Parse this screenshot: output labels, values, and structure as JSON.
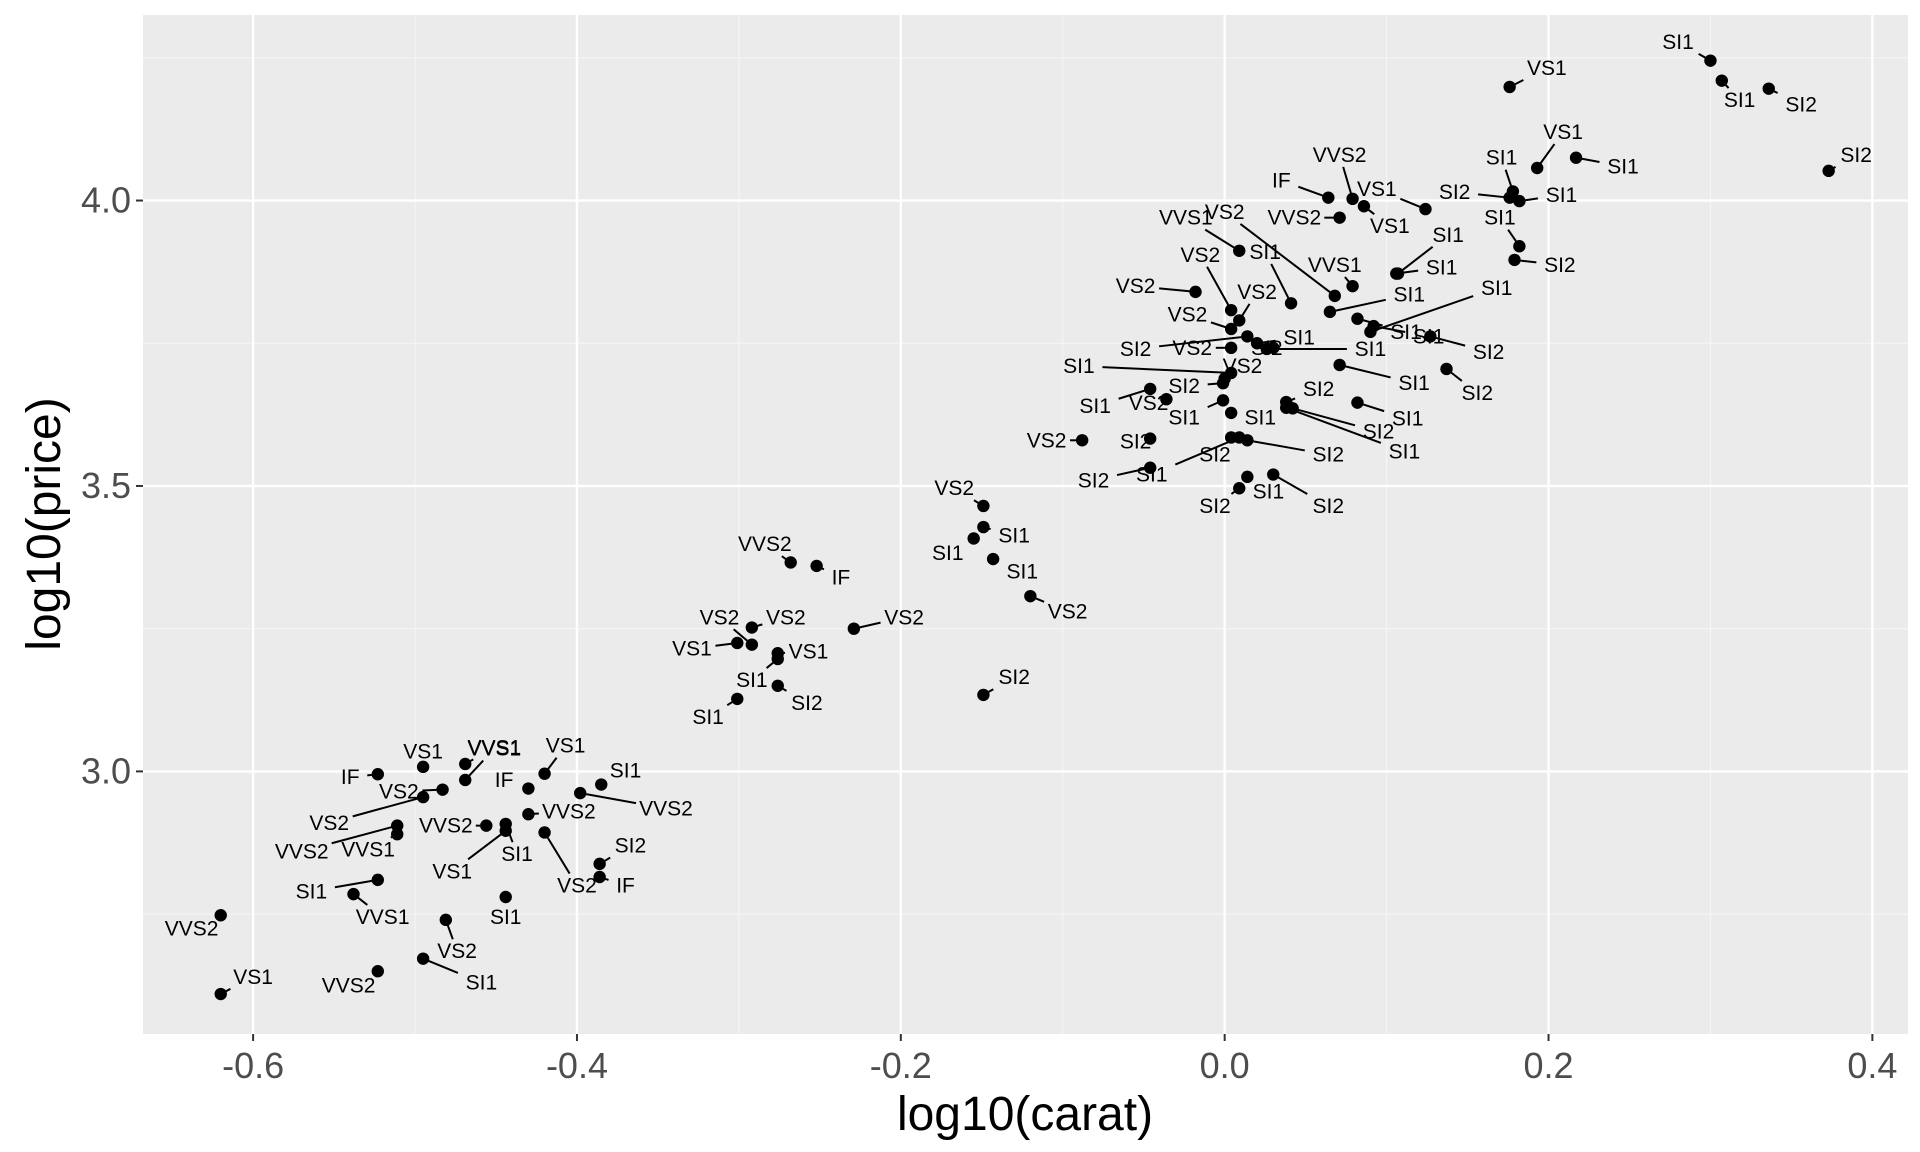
{
  "chart_data": {
    "type": "scatter",
    "xlabel": "log10(carat)",
    "ylabel": "log10(price)",
    "xlim": [
      -0.668,
      0.422
    ],
    "ylim": [
      2.54,
      4.325
    ],
    "x_ticks": [
      -0.6,
      -0.4,
      -0.2,
      0.0,
      0.2,
      0.4
    ],
    "y_ticks": [
      3.0,
      3.5,
      4.0
    ],
    "x_tick_labels": [
      "-0.6",
      "-0.4",
      "-0.2",
      "0.0",
      "0.2",
      "0.4"
    ],
    "y_tick_labels": [
      "3.0",
      "3.5",
      "4.0"
    ],
    "grid": true,
    "colors": {
      "panel_background": "#ebebeb",
      "grid_major": "#ffffff",
      "grid_minor": "#f5f5f5",
      "point": "#000000",
      "tick_text": "#4d4d4d"
    },
    "points": [
      {
        "x": 0.176,
        "y": 4.199,
        "label": "VS1",
        "lx": 0.199,
        "ly": 4.232
      },
      {
        "x": 0.3,
        "y": 4.245,
        "label": "SI1",
        "lx": 0.28,
        "ly": 4.278
      },
      {
        "x": 0.307,
        "y": 4.21,
        "label": "SI1",
        "lx": 0.318,
        "ly": 4.176
      },
      {
        "x": 0.336,
        "y": 4.196,
        "label": "SI2",
        "lx": 0.356,
        "ly": 4.168
      },
      {
        "x": 0.373,
        "y": 4.052,
        "label": "SI2",
        "lx": 0.39,
        "ly": 4.08
      },
      {
        "x": 0.193,
        "y": 4.057,
        "label": "VS1",
        "lx": 0.209,
        "ly": 4.12
      },
      {
        "x": 0.217,
        "y": 4.075,
        "label": "SI1",
        "lx": 0.246,
        "ly": 4.06
      },
      {
        "x": 0.178,
        "y": 4.016,
        "label": "SI1",
        "lx": 0.171,
        "ly": 4.075
      },
      {
        "x": 0.176,
        "y": 4.005,
        "label": "SI2",
        "lx": 0.142,
        "ly": 4.015
      },
      {
        "x": 0.182,
        "y": 3.999,
        "label": "SI1",
        "lx": 0.208,
        "ly": 4.01
      },
      {
        "x": 0.182,
        "y": 3.92,
        "label": "SI1",
        "lx": 0.17,
        "ly": 3.97
      },
      {
        "x": 0.179,
        "y": 3.896,
        "label": "SI2",
        "lx": 0.207,
        "ly": 3.887
      },
      {
        "x": 0.124,
        "y": 3.985,
        "label": "VS1",
        "lx": 0.094,
        "ly": 4.02
      },
      {
        "x": 0.086,
        "y": 3.99,
        "label": "VS1",
        "lx": 0.102,
        "ly": 3.955
      },
      {
        "x": 0.079,
        "y": 4.003,
        "label": "VVS2",
        "lx": 0.071,
        "ly": 4.08
      },
      {
        "x": 0.064,
        "y": 4.005,
        "label": "IF",
        "lx": 0.035,
        "ly": 4.035
      },
      {
        "x": 0.071,
        "y": 3.97,
        "label": "VVS2",
        "lx": 0.043,
        "ly": 3.97
      },
      {
        "x": 0.107,
        "y": 3.872,
        "label": "SI1",
        "lx": 0.138,
        "ly": 3.94
      },
      {
        "x": 0.106,
        "y": 3.872,
        "label": "SI1",
        "lx": 0.134,
        "ly": 3.883
      },
      {
        "x": 0.079,
        "y": 3.85,
        "label": "VVS1",
        "lx": 0.068,
        "ly": 3.887
      },
      {
        "x": 0.068,
        "y": 3.833,
        "label": "VS2",
        "lx": 0.0,
        "ly": 3.98
      },
      {
        "x": 0.065,
        "y": 3.805,
        "label": "SI1",
        "lx": 0.114,
        "ly": 3.835
      },
      {
        "x": 0.009,
        "y": 3.912,
        "label": "VVS1",
        "lx": -0.024,
        "ly": 3.97
      },
      {
        "x": 0.041,
        "y": 3.82,
        "label": "SI1",
        "lx": 0.025,
        "ly": 3.91
      },
      {
        "x": -0.018,
        "y": 3.84,
        "label": "VS2",
        "lx": -0.055,
        "ly": 3.85
      },
      {
        "x": 0.004,
        "y": 3.808,
        "label": "VS2",
        "lx": -0.015,
        "ly": 3.905
      },
      {
        "x": 0.009,
        "y": 3.79,
        "label": "VS2",
        "lx": 0.02,
        "ly": 3.84
      },
      {
        "x": 0.004,
        "y": 3.775,
        "label": "VS2",
        "lx": -0.023,
        "ly": 3.8
      },
      {
        "x": 0.082,
        "y": 3.793,
        "label": "SI1",
        "lx": 0.112,
        "ly": 3.77
      },
      {
        "x": 0.09,
        "y": 3.77,
        "label": "SI1",
        "lx": 0.168,
        "ly": 3.847
      },
      {
        "x": 0.092,
        "y": 3.78,
        "label": "SI1",
        "lx": 0.126,
        "ly": 3.762
      },
      {
        "x": 0.014,
        "y": 3.762,
        "label": "SI2",
        "lx": -0.055,
        "ly": 3.74
      },
      {
        "x": 0.004,
        "y": 3.742,
        "label": "VS2",
        "lx": -0.02,
        "ly": 3.742
      },
      {
        "x": 0.02,
        "y": 3.75,
        "label": "SI1",
        "lx": 0.046,
        "ly": 3.76
      },
      {
        "x": 0.026,
        "y": 3.74,
        "label": "SI1",
        "lx": 0.09,
        "ly": 3.74
      },
      {
        "x": 0.03,
        "y": 3.742,
        "label": "SI2",
        "lx": 0.026,
        "ly": 3.742
      },
      {
        "x": 0.127,
        "y": 3.762,
        "label": "SI2",
        "lx": 0.163,
        "ly": 3.735
      },
      {
        "x": 0.071,
        "y": 3.712,
        "label": "SI1",
        "lx": 0.117,
        "ly": 3.68
      },
      {
        "x": 0.137,
        "y": 3.705,
        "label": "SI2",
        "lx": 0.156,
        "ly": 3.663
      },
      {
        "x": 0.004,
        "y": 3.698,
        "label": "SI1",
        "lx": -0.09,
        "ly": 3.71
      },
      {
        "x": 0.0,
        "y": 3.688,
        "label": "VS2",
        "lx": 0.011,
        "ly": 3.71
      },
      {
        "x": -0.001,
        "y": 3.68,
        "label": "SI2",
        "lx": -0.025,
        "ly": 3.675
      },
      {
        "x": -0.046,
        "y": 3.67,
        "label": "SI1",
        "lx": -0.08,
        "ly": 3.64
      },
      {
        "x": -0.036,
        "y": 3.652,
        "label": "VS2",
        "lx": -0.047,
        "ly": 3.645
      },
      {
        "x": 0.038,
        "y": 3.647,
        "label": "SI2",
        "lx": 0.058,
        "ly": 3.67
      },
      {
        "x": 0.042,
        "y": 3.636,
        "label": "SI2",
        "lx": 0.095,
        "ly": 3.595
      },
      {
        "x": 0.082,
        "y": 3.646,
        "label": "SI1",
        "lx": 0.113,
        "ly": 3.618
      },
      {
        "x": -0.001,
        "y": 3.65,
        "label": "SI1",
        "lx": -0.025,
        "ly": 3.62
      },
      {
        "x": 0.004,
        "y": 3.628,
        "label": "SI1",
        "lx": 0.022,
        "ly": 3.62
      },
      {
        "x": 0.038,
        "y": 3.637,
        "label": "SI1",
        "lx": 0.111,
        "ly": 3.56
      },
      {
        "x": -0.088,
        "y": 3.58,
        "label": "VS2",
        "lx": -0.11,
        "ly": 3.58
      },
      {
        "x": -0.046,
        "y": 3.583,
        "label": "SI2",
        "lx": -0.055,
        "ly": 3.578
      },
      {
        "x": 0.009,
        "y": 3.585,
        "label": "SI1",
        "lx": -0.045,
        "ly": 3.52
      },
      {
        "x": 0.014,
        "y": 3.58,
        "label": "SI2",
        "lx": 0.064,
        "ly": 3.555
      },
      {
        "x": -0.046,
        "y": 3.532,
        "label": "SI2",
        "lx": -0.081,
        "ly": 3.51
      },
      {
        "x": 0.004,
        "y": 3.585,
        "label": "SI2",
        "lx": -0.006,
        "ly": 3.555
      },
      {
        "x": 0.014,
        "y": 3.516,
        "label": "SI1",
        "lx": 0.027,
        "ly": 3.49
      },
      {
        "x": 0.03,
        "y": 3.52,
        "label": "SI2",
        "lx": 0.064,
        "ly": 3.465
      },
      {
        "x": 0.009,
        "y": 3.496,
        "label": "SI2",
        "lx": -0.006,
        "ly": 3.465
      },
      {
        "x": -0.149,
        "y": 3.465,
        "label": "VS2",
        "lx": -0.167,
        "ly": 3.496
      },
      {
        "x": -0.149,
        "y": 3.428,
        "label": "SI1",
        "lx": -0.13,
        "ly": 3.413
      },
      {
        "x": -0.155,
        "y": 3.408,
        "label": "SI1",
        "lx": -0.171,
        "ly": 3.383
      },
      {
        "x": -0.143,
        "y": 3.372,
        "label": "SI1",
        "lx": -0.125,
        "ly": 3.35
      },
      {
        "x": -0.12,
        "y": 3.307,
        "label": "VS2",
        "lx": -0.097,
        "ly": 3.28
      },
      {
        "x": -0.149,
        "y": 3.134,
        "label": "SI2",
        "lx": -0.13,
        "ly": 3.165
      },
      {
        "x": -0.268,
        "y": 3.366,
        "label": "VVS2",
        "lx": -0.284,
        "ly": 3.398
      },
      {
        "x": -0.252,
        "y": 3.36,
        "label": "IF",
        "lx": -0.237,
        "ly": 3.34
      },
      {
        "x": -0.229,
        "y": 3.25,
        "label": "VS2",
        "lx": -0.198,
        "ly": 3.27
      },
      {
        "x": -0.292,
        "y": 3.252,
        "label": "VS2",
        "lx": -0.271,
        "ly": 3.27
      },
      {
        "x": -0.292,
        "y": 3.222,
        "label": "VS2",
        "lx": -0.312,
        "ly": 3.27
      },
      {
        "x": -0.301,
        "y": 3.225,
        "label": "VS1",
        "lx": -0.329,
        "ly": 3.215
      },
      {
        "x": -0.276,
        "y": 3.207,
        "label": "VS1",
        "lx": -0.257,
        "ly": 3.21
      },
      {
        "x": -0.276,
        "y": 3.197,
        "label": "SI1",
        "lx": -0.292,
        "ly": 3.16
      },
      {
        "x": -0.276,
        "y": 3.15,
        "label": "SI2",
        "lx": -0.258,
        "ly": 3.12
      },
      {
        "x": -0.301,
        "y": 3.127,
        "label": "SI1",
        "lx": -0.319,
        "ly": 3.095
      },
      {
        "x": -0.495,
        "y": 3.008,
        "label": "VS1",
        "lx": -0.495,
        "ly": 3.035
      },
      {
        "x": -0.469,
        "y": 3.013,
        "label": "VVS1",
        "lx": -0.451,
        "ly": 3.042
      },
      {
        "x": -0.469,
        "y": 2.985,
        "label": "VVS1",
        "lx": -0.451,
        "ly": 3.04
      },
      {
        "x": -0.42,
        "y": 2.996,
        "label": "VS1",
        "lx": -0.407,
        "ly": 3.045
      },
      {
        "x": -0.523,
        "y": 2.995,
        "label": "IF",
        "lx": -0.54,
        "ly": 2.99
      },
      {
        "x": -0.483,
        "y": 2.968,
        "label": "VS2",
        "lx": -0.51,
        "ly": 2.965
      },
      {
        "x": -0.43,
        "y": 2.97,
        "label": "IF",
        "lx": -0.445,
        "ly": 2.985
      },
      {
        "x": -0.385,
        "y": 2.977,
        "label": "SI1",
        "lx": -0.37,
        "ly": 3.002
      },
      {
        "x": -0.398,
        "y": 2.962,
        "label": "VVS2",
        "lx": -0.345,
        "ly": 2.935
      },
      {
        "x": -0.495,
        "y": 2.955,
        "label": "VS2",
        "lx": -0.553,
        "ly": 2.91
      },
      {
        "x": -0.43,
        "y": 2.925,
        "label": "VVS2",
        "lx": -0.405,
        "ly": 2.93
      },
      {
        "x": -0.511,
        "y": 2.905,
        "label": "VVS2",
        "lx": -0.57,
        "ly": 2.86
      },
      {
        "x": -0.456,
        "y": 2.905,
        "label": "VVS2",
        "lx": -0.481,
        "ly": 2.905
      },
      {
        "x": -0.444,
        "y": 2.908,
        "label": "SI1",
        "lx": -0.437,
        "ly": 2.855
      },
      {
        "x": -0.444,
        "y": 2.896,
        "label": "VS1",
        "lx": -0.477,
        "ly": 2.825
      },
      {
        "x": -0.42,
        "y": 2.893,
        "label": "VS2",
        "lx": -0.4,
        "ly": 2.8
      },
      {
        "x": -0.511,
        "y": 2.89,
        "label": "VVS1",
        "lx": -0.529,
        "ly": 2.863
      },
      {
        "x": -0.386,
        "y": 2.838,
        "label": "SI2",
        "lx": -0.367,
        "ly": 2.87
      },
      {
        "x": -0.386,
        "y": 2.815,
        "label": "IF",
        "lx": -0.37,
        "ly": 2.8
      },
      {
        "x": -0.523,
        "y": 2.81,
        "label": "SI1",
        "lx": -0.564,
        "ly": 2.79
      },
      {
        "x": -0.538,
        "y": 2.785,
        "label": "VVS1",
        "lx": -0.52,
        "ly": 2.745
      },
      {
        "x": -0.444,
        "y": 2.78,
        "label": "SI1",
        "lx": -0.444,
        "ly": 2.745
      },
      {
        "x": -0.62,
        "y": 2.748,
        "label": "VVS2",
        "lx": -0.638,
        "ly": 2.725
      },
      {
        "x": -0.481,
        "y": 2.74,
        "label": "VS2",
        "lx": -0.474,
        "ly": 2.685
      },
      {
        "x": -0.495,
        "y": 2.672,
        "label": "SI1",
        "lx": -0.459,
        "ly": 2.63
      },
      {
        "x": -0.523,
        "y": 2.65,
        "label": "VVS2",
        "lx": -0.541,
        "ly": 2.625
      },
      {
        "x": -0.62,
        "y": 2.61,
        "label": "VS1",
        "lx": -0.6,
        "ly": 2.64
      }
    ]
  }
}
